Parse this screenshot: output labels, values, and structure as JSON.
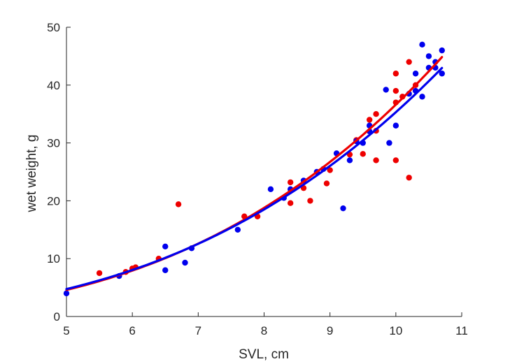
{
  "chart_data": {
    "type": "scatter",
    "xlabel": "SVL, cm",
    "ylabel": "wet weight, g",
    "xlim": [
      5,
      11
    ],
    "ylim": [
      0,
      50
    ],
    "xticks": [
      5,
      6,
      7,
      8,
      9,
      10,
      11
    ],
    "yticks": [
      0,
      10,
      20,
      30,
      40,
      50
    ],
    "grid": false,
    "legend": "none",
    "series": [
      {
        "color": "#ee0000",
        "points": [
          [
            5.5,
            7.5
          ],
          [
            5.9,
            7.7
          ],
          [
            6.0,
            8.3
          ],
          [
            6.05,
            8.5
          ],
          [
            6.4,
            10.0
          ],
          [
            6.7,
            19.4
          ],
          [
            7.7,
            17.3
          ],
          [
            7.9,
            17.3
          ],
          [
            8.4,
            23.2
          ],
          [
            8.4,
            19.6
          ],
          [
            8.6,
            22.2
          ],
          [
            8.7,
            20.0
          ],
          [
            8.95,
            23.0
          ],
          [
            9.0,
            25.3
          ],
          [
            9.3,
            28.0
          ],
          [
            9.4,
            30.5
          ],
          [
            9.5,
            28.1
          ],
          [
            9.6,
            34.0
          ],
          [
            9.7,
            35.0
          ],
          [
            9.7,
            32.1
          ],
          [
            9.7,
            27.0
          ],
          [
            10.0,
            42.0
          ],
          [
            10.0,
            39.0
          ],
          [
            10.0,
            37.0
          ],
          [
            10.0,
            27.0
          ],
          [
            10.1,
            38.0
          ],
          [
            10.2,
            44.0
          ],
          [
            10.2,
            24.0
          ],
          [
            10.3,
            40.0
          ]
        ],
        "fit": {
          "type": "power",
          "a": 0.0372,
          "b": 2.9932
        }
      },
      {
        "color": "#0000ee",
        "points": [
          [
            5.0,
            4.0
          ],
          [
            5.8,
            7.0
          ],
          [
            6.5,
            12.1
          ],
          [
            6.5,
            8.0
          ],
          [
            6.8,
            9.3
          ],
          [
            6.9,
            11.8
          ],
          [
            7.6,
            15.0
          ],
          [
            8.1,
            22.0
          ],
          [
            8.3,
            20.5
          ],
          [
            8.4,
            22.0
          ],
          [
            8.6,
            23.5
          ],
          [
            8.8,
            25.0
          ],
          [
            8.9,
            25.5
          ],
          [
            9.1,
            28.2
          ],
          [
            9.2,
            18.7
          ],
          [
            9.3,
            27.0
          ],
          [
            9.4,
            30.3
          ],
          [
            9.5,
            30.0
          ],
          [
            9.6,
            33.0
          ],
          [
            9.6,
            32.0
          ],
          [
            9.85,
            39.2
          ],
          [
            9.9,
            30.0
          ],
          [
            10.0,
            33.0
          ],
          [
            10.2,
            38.5
          ],
          [
            10.3,
            42.0
          ],
          [
            10.3,
            39.0
          ],
          [
            10.4,
            47.0
          ],
          [
            10.4,
            38.0
          ],
          [
            10.5,
            45.0
          ],
          [
            10.5,
            43.0
          ],
          [
            10.6,
            44.0
          ],
          [
            10.6,
            43.0
          ],
          [
            10.7,
            46.0
          ],
          [
            10.7,
            42.0
          ]
        ],
        "fit": {
          "type": "power",
          "a": 0.0448,
          "b": 2.8967
        }
      }
    ]
  }
}
